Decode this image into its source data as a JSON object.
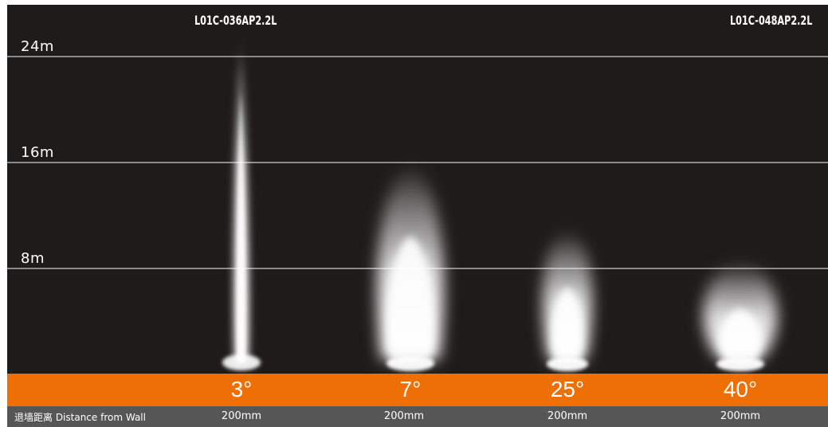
{
  "models": {
    "left": "L01C-036AP2.2L",
    "right": "L01C-048AP2.2L"
  },
  "height_markers": [
    "24m",
    "16m",
    "8m"
  ],
  "beams": [
    {
      "angle": "3°",
      "distance": "200mm"
    },
    {
      "angle": "7°",
      "distance": "200mm"
    },
    {
      "angle": "25°",
      "distance": "200mm"
    },
    {
      "angle": "40°",
      "distance": "200mm"
    }
  ],
  "wall_label": "退墙距离 Distance from Wall",
  "colors": {
    "background": "#1f1b1b",
    "accent_bar": "#ee6f05",
    "footer_bar": "#565656",
    "grid": "#8a8a8a",
    "beam": "#ffffff"
  }
}
